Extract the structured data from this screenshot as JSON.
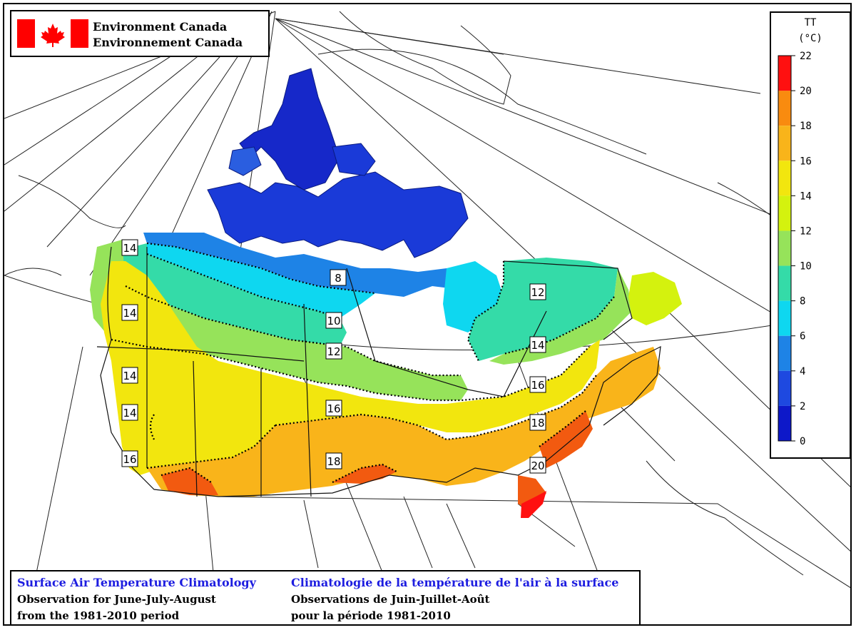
{
  "header": {
    "org_en": "Environment Canada",
    "org_fr": "Environnement Canada"
  },
  "legend": {
    "variable": "TT",
    "unit": "(°C)",
    "ticks": [
      "22",
      "20",
      "18",
      "16",
      "14",
      "12",
      "10",
      "8",
      "6",
      "4",
      "2",
      "0"
    ],
    "colors": [
      "#ff1010",
      "#f25a10",
      "#f98b0f",
      "#f9b41a",
      "#f2e60e",
      "#d4f20e",
      "#96e35a",
      "#34dba8",
      "#0ed7f0",
      "#1e83e6",
      "#1e49e0",
      "#0d18c9",
      "#000d7a"
    ]
  },
  "contour_labels": [
    "14",
    "14",
    "14",
    "14",
    "16",
    "8",
    "10",
    "12",
    "16",
    "18",
    "12",
    "14",
    "16",
    "18",
    "20"
  ],
  "caption": {
    "title_en": "Surface Air Temperature Climatology",
    "line2_en": "Observation for June-July-August",
    "line3_en": "from the 1981-2010 period",
    "title_fr": "Climatologie de la température de l'air à la surface",
    "line2_fr": "Observations de Juin-Juillet-Août",
    "line3_fr": "pour la période 1981-2010"
  }
}
